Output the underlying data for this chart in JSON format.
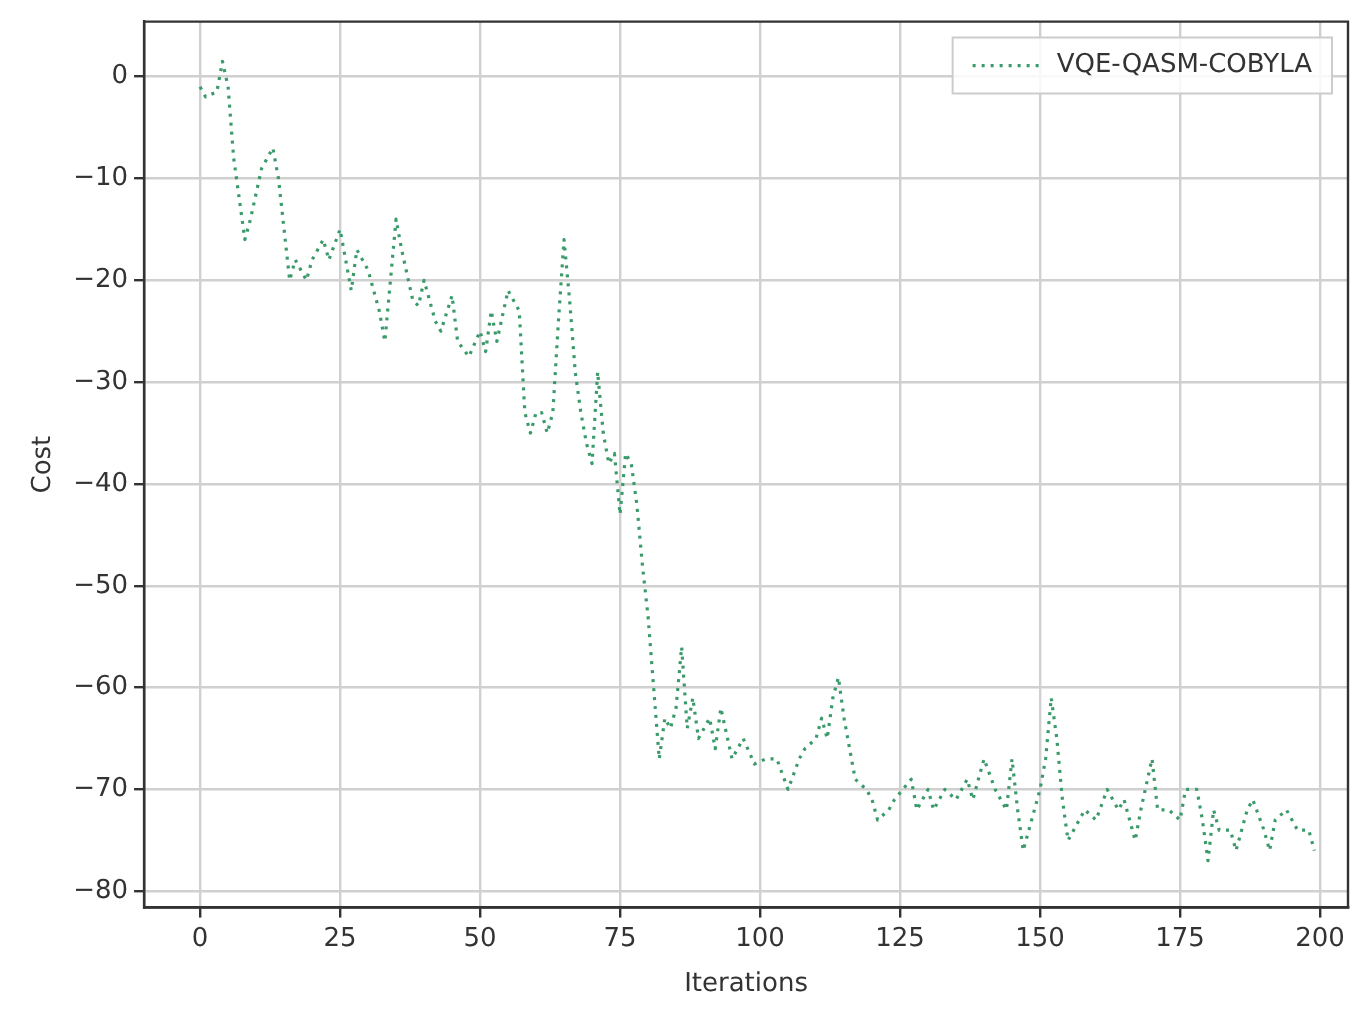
{
  "chart_data": {
    "type": "line",
    "xlabel": "Iterations",
    "ylabel": "Cost",
    "xlim": [
      -10,
      205
    ],
    "ylim": [
      -81.6,
      5.4
    ],
    "xticks": [
      0,
      25,
      50,
      75,
      100,
      125,
      150,
      175,
      200
    ],
    "yticks": [
      {
        "value": 0,
        "label": "0"
      },
      {
        "value": -10,
        "label": "−10"
      },
      {
        "value": -20,
        "label": "−20"
      },
      {
        "value": -30,
        "label": "−30"
      },
      {
        "value": -40,
        "label": "−40"
      },
      {
        "value": -50,
        "label": "−50"
      },
      {
        "value": -60,
        "label": "−60"
      },
      {
        "value": -70,
        "label": "−70"
      },
      {
        "value": -80,
        "label": "−80"
      }
    ],
    "grid": true,
    "legend": "top right",
    "line_style": "dotted",
    "marker": "none",
    "series": [
      {
        "name": "VQE-QASM-COBYLA",
        "color": "#3a9a6a",
        "x": [
          0,
          1,
          3,
          4,
          5,
          6,
          8,
          9,
          11,
          13,
          14,
          16,
          17,
          19,
          20,
          22,
          23,
          25,
          26,
          27,
          28,
          30,
          32,
          33,
          35,
          36,
          38,
          39,
          40,
          42,
          43,
          45,
          46,
          48,
          50,
          51,
          52,
          53,
          55,
          57,
          58,
          59,
          60,
          61,
          62,
          63,
          64,
          65,
          66,
          67,
          68,
          69,
          70,
          71,
          72,
          73,
          74,
          75,
          76,
          77,
          78,
          79,
          80,
          81,
          82,
          83,
          84,
          85,
          86,
          87,
          88,
          89,
          91,
          92,
          93,
          95,
          97,
          99,
          101,
          103,
          105,
          107,
          108,
          110,
          111,
          112,
          113,
          114,
          115,
          116,
          117,
          119,
          120,
          121,
          123,
          124,
          127,
          128,
          130,
          131,
          133,
          135,
          137,
          138,
          140,
          142,
          144,
          145,
          146,
          147,
          149,
          150,
          151,
          152,
          153,
          154,
          155,
          156,
          158,
          160,
          162,
          164,
          165,
          167,
          168,
          170,
          171,
          173,
          175,
          176,
          178,
          179,
          180,
          181,
          182,
          184,
          185,
          187,
          188,
          190,
          191,
          192,
          194,
          196,
          198,
          199
        ],
        "values": [
          -1,
          -2,
          -1.5,
          1.5,
          -1,
          -8,
          -16,
          -14,
          -9,
          -7,
          -10,
          -20,
          -18,
          -20,
          -18,
          -16,
          -18,
          -15,
          -18,
          -21,
          -17,
          -19,
          -23,
          -26,
          -14,
          -17,
          -22,
          -22.5,
          -20,
          -24,
          -25,
          -21.5,
          -26,
          -27.5,
          -25,
          -27,
          -23,
          -26,
          -21,
          -23,
          -33,
          -35,
          -33,
          -33,
          -35,
          -33,
          -24,
          -16,
          -22,
          -29,
          -33,
          -36,
          -38,
          -29,
          -35,
          -38,
          -37,
          -43,
          -37,
          -38,
          -42,
          -48,
          -53,
          -60,
          -67,
          -63,
          -64,
          -62,
          -56,
          -64,
          -61,
          -65,
          -63,
          -66,
          -62,
          -67,
          -65,
          -67.5,
          -67,
          -67,
          -70,
          -67,
          -66,
          -65,
          -63,
          -65,
          -61,
          -59,
          -63,
          -66,
          -69,
          -70,
          -71,
          -73,
          -72,
          -71,
          -69,
          -72,
          -70,
          -72,
          -70,
          -71,
          -69,
          -71,
          -67,
          -70,
          -72,
          -67,
          -72,
          -76,
          -72,
          -70,
          -67,
          -61,
          -65,
          -71,
          -75,
          -74,
          -72,
          -73,
          -70,
          -72,
          -71,
          -75,
          -72,
          -67,
          -72,
          -72,
          -73,
          -70,
          -70,
          -73,
          -77,
          -72,
          -74,
          -74,
          -76,
          -72,
          -71,
          -74,
          -76,
          -73,
          -72,
          -74,
          -74,
          -76
        ]
      }
    ]
  }
}
